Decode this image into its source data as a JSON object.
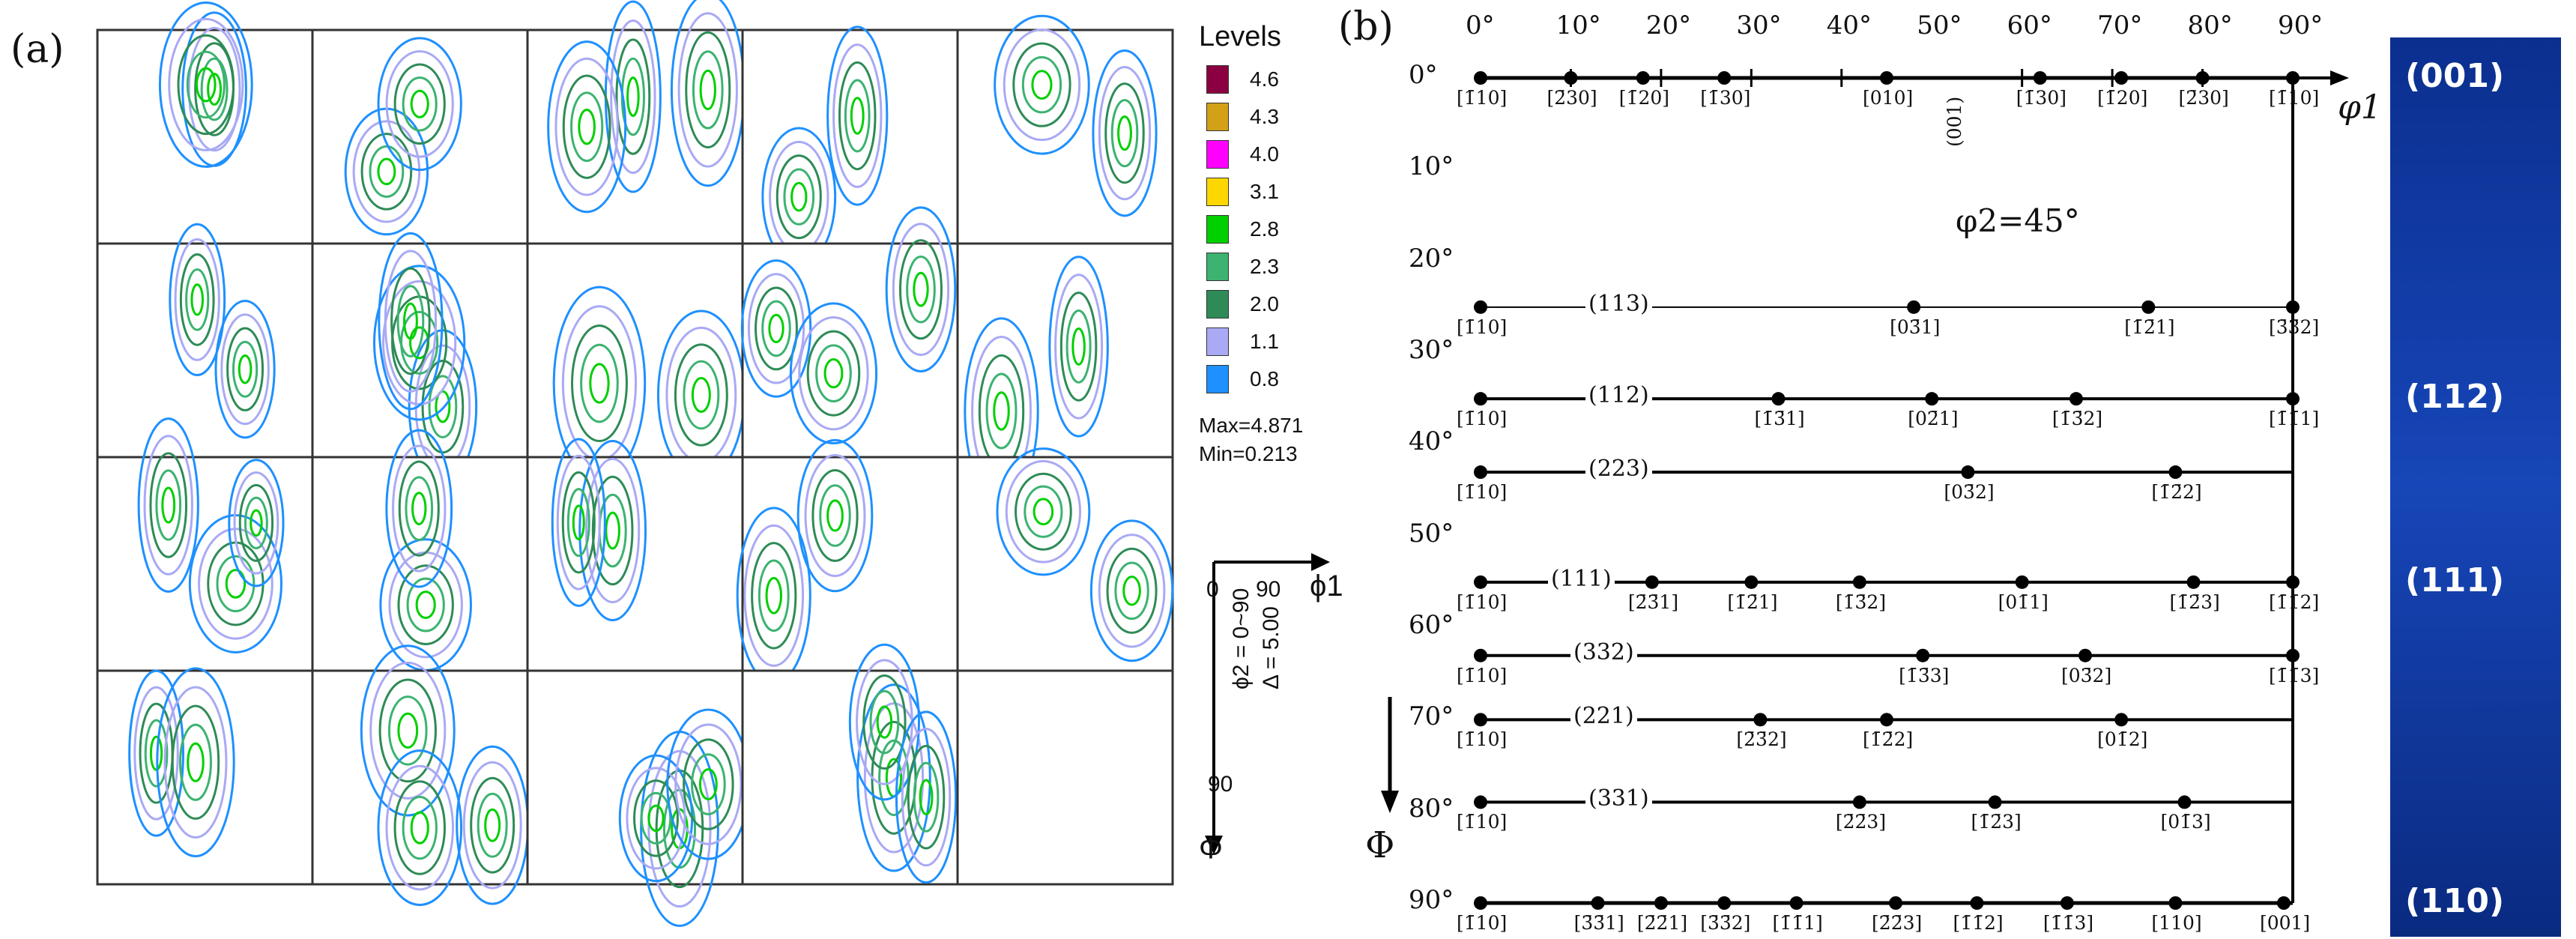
{
  "panel_a": {
    "label": "(a)",
    "legend": {
      "title": "Levels",
      "levels": [
        {
          "value": "4.6",
          "color": "#8b0040"
        },
        {
          "value": "4.3",
          "color": "#d4a017"
        },
        {
          "value": "4.0",
          "color": "#ff00ff"
        },
        {
          "value": "3.1",
          "color": "#ffd700"
        },
        {
          "value": "2.8",
          "color": "#00d000"
        },
        {
          "value": "2.3",
          "color": "#3cb371"
        },
        {
          "value": "2.0",
          "color": "#2e8b57"
        },
        {
          "value": "1.1",
          "color": "#a9a9f5"
        },
        {
          "value": "0.8",
          "color": "#1e90ff"
        }
      ],
      "max": "Max=4.871",
      "min": "Min=0.213"
    },
    "axes": {
      "origin": "0",
      "x_end": "90",
      "x_label": "ϕ1",
      "y_end": "90",
      "y_label": "Φ",
      "phi2_range": "ϕ2 = 0~90",
      "delta": "Δ = 5.00"
    },
    "grid": {
      "rows": 4,
      "cols": 5,
      "filled_in_last_row": 4
    }
  },
  "panel_b": {
    "label": "(b)",
    "phi2": "φ2=45°",
    "x_axis_label": "φ1",
    "y_axis_label": "Φ",
    "top_ticks": [
      "0°",
      "10°",
      "20°",
      "30°",
      "40°",
      "50°",
      "60°",
      "70°",
      "80°",
      "90°"
    ],
    "left_ticks": [
      "0°",
      "10°",
      "20°",
      "30°",
      "40°",
      "50°",
      "60°",
      "70°",
      "80°",
      "90°"
    ],
    "fibers": [
      {
        "phi": 0,
        "plane": "",
        "labels": [
          {
            "t": "[1̄10]",
            "phi1": 0
          },
          {
            "t": "[2̄30]",
            "phi1": 10
          },
          {
            "t": "[1̄20]",
            "phi1": 18
          },
          {
            "t": "[1̄30]",
            "phi1": 27
          },
          {
            "t": "[010]",
            "phi1": 45
          },
          {
            "t": "[1̄30]",
            "phi1": 62
          },
          {
            "t": "[1̄20]",
            "phi1": 71
          },
          {
            "t": "[2̄30]",
            "phi1": 80
          },
          {
            "t": "[1̄10]",
            "phi1": 90
          }
        ],
        "mid_label": "(001)"
      },
      {
        "phi": 25,
        "plane": "(113)",
        "labels": [
          {
            "t": "[1̄10]",
            "phi1": 0
          },
          {
            "t": "[03̄1]",
            "phi1": 48
          },
          {
            "t": "[1̄2̄1]",
            "phi1": 74
          },
          {
            "t": "[3̄3̄2]",
            "phi1": 90
          }
        ]
      },
      {
        "phi": 35,
        "plane": "(112)",
        "labels": [
          {
            "t": "[1̄10]",
            "phi1": 0
          },
          {
            "t": "[1̄3̄1]",
            "phi1": 33
          },
          {
            "t": "[02̄1]",
            "phi1": 50
          },
          {
            "t": "[1̄3̄2]",
            "phi1": 66
          },
          {
            "t": "[1̄1̄1]",
            "phi1": 90
          }
        ]
      },
      {
        "phi": 43,
        "plane": "(223)",
        "labels": [
          {
            "t": "[1̄10]",
            "phi1": 0
          },
          {
            "t": "[03̄2]",
            "phi1": 54
          },
          {
            "t": "[1̄2̄2]",
            "phi1": 77
          }
        ]
      },
      {
        "phi": 55,
        "plane": "(111)",
        "labels": [
          {
            "t": "[1̄10]",
            "phi1": 0
          },
          {
            "t": "[2̄3̄1]",
            "phi1": 19
          },
          {
            "t": "[1̄2̄1]",
            "phi1": 30
          },
          {
            "t": "[1̄3̄2]",
            "phi1": 42
          },
          {
            "t": "[01̄1]",
            "phi1": 60
          },
          {
            "t": "[1̄2̄3]",
            "phi1": 79
          },
          {
            "t": "[1̄1̄2]",
            "phi1": 90
          }
        ]
      },
      {
        "phi": 63,
        "plane": "(332)",
        "labels": [
          {
            "t": "[1̄10]",
            "phi1": 0
          },
          {
            "t": "[1̄3̄3]",
            "phi1": 49
          },
          {
            "t": "[03̄2]",
            "phi1": 67
          },
          {
            "t": "[1̄1̄3]",
            "phi1": 90
          }
        ]
      },
      {
        "phi": 70,
        "plane": "(221)",
        "labels": [
          {
            "t": "[1̄10]",
            "phi1": 0
          },
          {
            "t": "[2̄3̄2]",
            "phi1": 31
          },
          {
            "t": "[1̄2̄2]",
            "phi1": 45
          },
          {
            "t": "[01̄2]",
            "phi1": 71
          }
        ]
      },
      {
        "phi": 79,
        "plane": "(331)",
        "labels": [
          {
            "t": "[1̄10]",
            "phi1": 0
          },
          {
            "t": "[2̄2̄3]",
            "phi1": 42
          },
          {
            "t": "[1̄2̄3]",
            "phi1": 57
          },
          {
            "t": "[01̄3]",
            "phi1": 78
          }
        ]
      },
      {
        "phi": 90,
        "plane": "",
        "labels": [
          {
            "t": "[1̄10]",
            "phi1": 0
          },
          {
            "t": "[3̄3̄1]",
            "phi1": 13
          },
          {
            "t": "[2̄2̄1]",
            "phi1": 20
          },
          {
            "t": "[3̄3̄2]",
            "phi1": 27
          },
          {
            "t": "[1̄1̄1]",
            "phi1": 35
          },
          {
            "t": "[2̄2̄3]",
            "phi1": 46
          },
          {
            "t": "[1̄1̄2]",
            "phi1": 55
          },
          {
            "t": "[1̄1̄3]",
            "phi1": 65
          },
          {
            "t": "[110]",
            "phi1": 77
          },
          {
            "t": "[001]",
            "phi1": 89
          }
        ]
      }
    ],
    "sidebar": {
      "background": "#0b2f8f",
      "labels": [
        {
          "text": "(001)",
          "phi": 0
        },
        {
          "text": "(112)",
          "phi": 35
        },
        {
          "text": "(111)",
          "phi": 55
        },
        {
          "text": "(110)",
          "phi": 90
        }
      ]
    }
  }
}
